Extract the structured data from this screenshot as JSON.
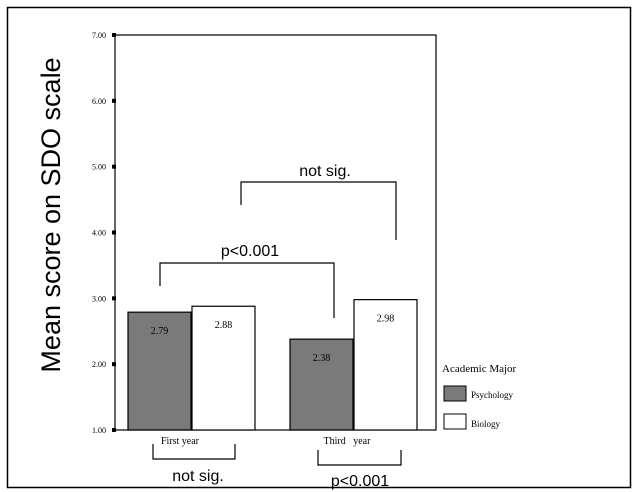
{
  "chart_data": {
    "type": "bar",
    "ylabel": "Mean score on SDO scale",
    "ylim": [
      1,
      7
    ],
    "yticks": [
      "1.00",
      "2.00",
      "3.00",
      "4.00",
      "5.00",
      "6.00",
      "7.00"
    ],
    "categories": [
      "First year",
      "Third year"
    ],
    "category_labels": [
      "First year",
      "Third   year"
    ],
    "series": [
      {
        "name": "Psychology",
        "values": [
          2.79,
          2.38
        ],
        "labels": [
          "2.79",
          "2.38"
        ],
        "color": "#7a7a7a"
      },
      {
        "name": "Biology",
        "values": [
          2.88,
          2.98
        ],
        "labels": [
          "2.88",
          "2.98"
        ],
        "color": "#ffffff"
      }
    ],
    "legend": {
      "title": "Academic Major",
      "placement": "right"
    },
    "annotations": {
      "top_bracket": "not sig.",
      "middle_bracket": "p<0.001",
      "first_year_bracket": "not sig.",
      "third_year_bracket": "p<0.001"
    },
    "grid": false
  }
}
